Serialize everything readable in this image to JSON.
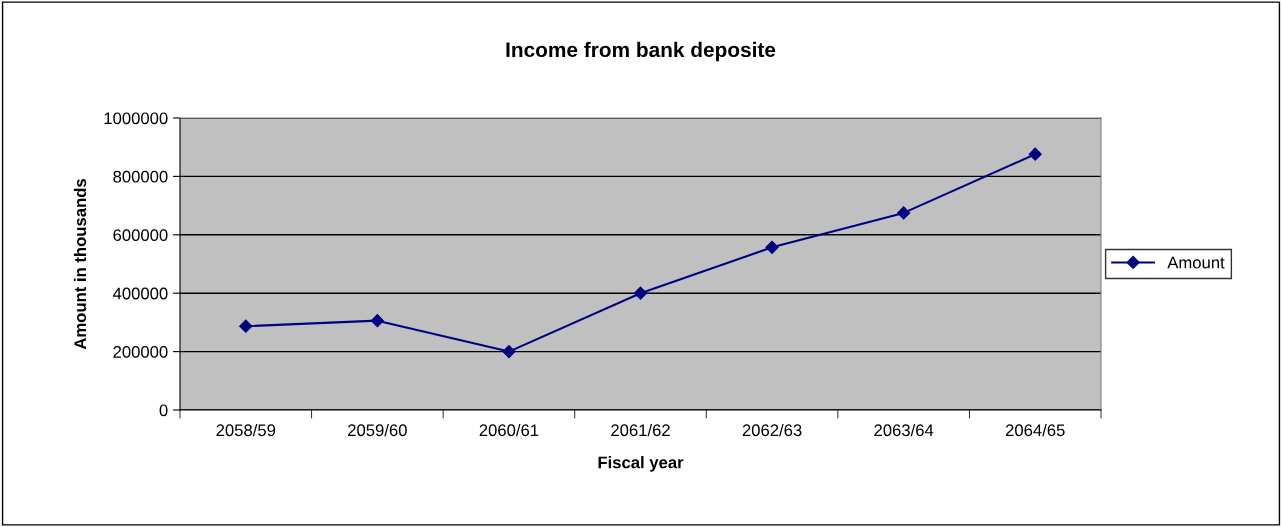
{
  "chart_data": {
    "type": "line",
    "title": "Income from bank deposite",
    "xlabel": "Fiscal year",
    "ylabel": "Amount in thousands",
    "categories": [
      "2058/59",
      "2059/60",
      "2060/61",
      "2061/62",
      "2062/63",
      "2063/64",
      "2064/65"
    ],
    "series": [
      {
        "name": "Amount",
        "color": "#000080",
        "values": [
          287000,
          306000,
          200000,
          400000,
          557000,
          675000,
          876000
        ]
      }
    ],
    "ylim": [
      0,
      1000000
    ],
    "yticks": [
      0,
      200000,
      400000,
      600000,
      800000,
      1000000
    ],
    "grid": "y",
    "legend": "right",
    "marker": "diamond",
    "line_style": "solid"
  }
}
